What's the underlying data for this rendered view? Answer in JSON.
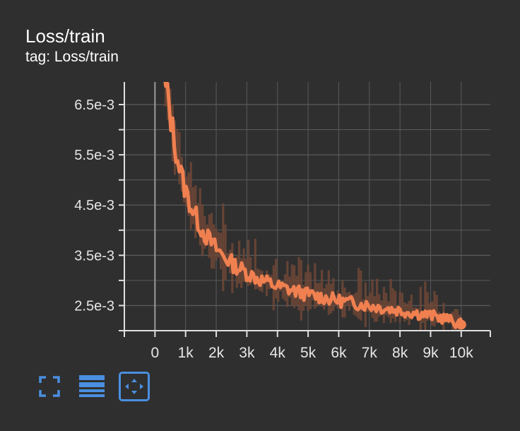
{
  "card": {
    "title": "Loss/train",
    "subtitle": "tag: Loss/train"
  },
  "toolbar": {
    "buttons": [
      {
        "icon": "fullscreen-icon",
        "active": false
      },
      {
        "icon": "data-table-icon",
        "active": false
      },
      {
        "icon": "fit-domain-icon",
        "active": true
      }
    ]
  },
  "colors": {
    "background": "#2f2f2f",
    "grid": "#5a5a5a",
    "series": "#f08050",
    "series_raw": "#6e4636",
    "accent": "#4a8fe0",
    "axis_text": "#e6e6e6"
  },
  "chart_data": {
    "type": "line",
    "title": "Loss/train",
    "xlabel": "",
    "ylabel": "",
    "xlim": [
      -1000,
      10950
    ],
    "ylim": [
      0.002,
      0.00695
    ],
    "x_ticks": [
      0,
      1000,
      2000,
      3000,
      4000,
      5000,
      6000,
      7000,
      8000,
      9000,
      10000
    ],
    "x_tick_labels": [
      "0",
      "1k",
      "2k",
      "3k",
      "4k",
      "5k",
      "6k",
      "7k",
      "8k",
      "9k",
      "10k"
    ],
    "y_ticks": [
      0.0025,
      0.0035,
      0.0045,
      0.0055,
      0.0065
    ],
    "y_tick_labels": [
      "2.5e-3",
      "3.5e-3",
      "4.5e-3",
      "5.5e-3",
      "6.5e-3"
    ],
    "grid": true,
    "series": [
      {
        "x": [
          300,
          400,
          500,
          600,
          700,
          800,
          900,
          1000,
          1200,
          1400,
          1600,
          1800,
          2000,
          2300,
          2600,
          3000,
          3500,
          4000,
          4500,
          5000,
          5500,
          6000,
          6500,
          7000,
          7500,
          8000,
          8500,
          9000,
          9500,
          10000
        ],
        "y": [
          0.00695,
          0.0067,
          0.0063,
          0.0059,
          0.00555,
          0.00525,
          0.005,
          0.00478,
          0.00445,
          0.00418,
          0.00395,
          0.00378,
          0.00363,
          0.00345,
          0.0033,
          0.00315,
          0.003,
          0.00288,
          0.0028,
          0.00272,
          0.00266,
          0.0026,
          0.00255,
          0.0025,
          0.00245,
          0.0024,
          0.00235,
          0.0023,
          0.00224,
          0.00212
        ]
      }
    ]
  }
}
